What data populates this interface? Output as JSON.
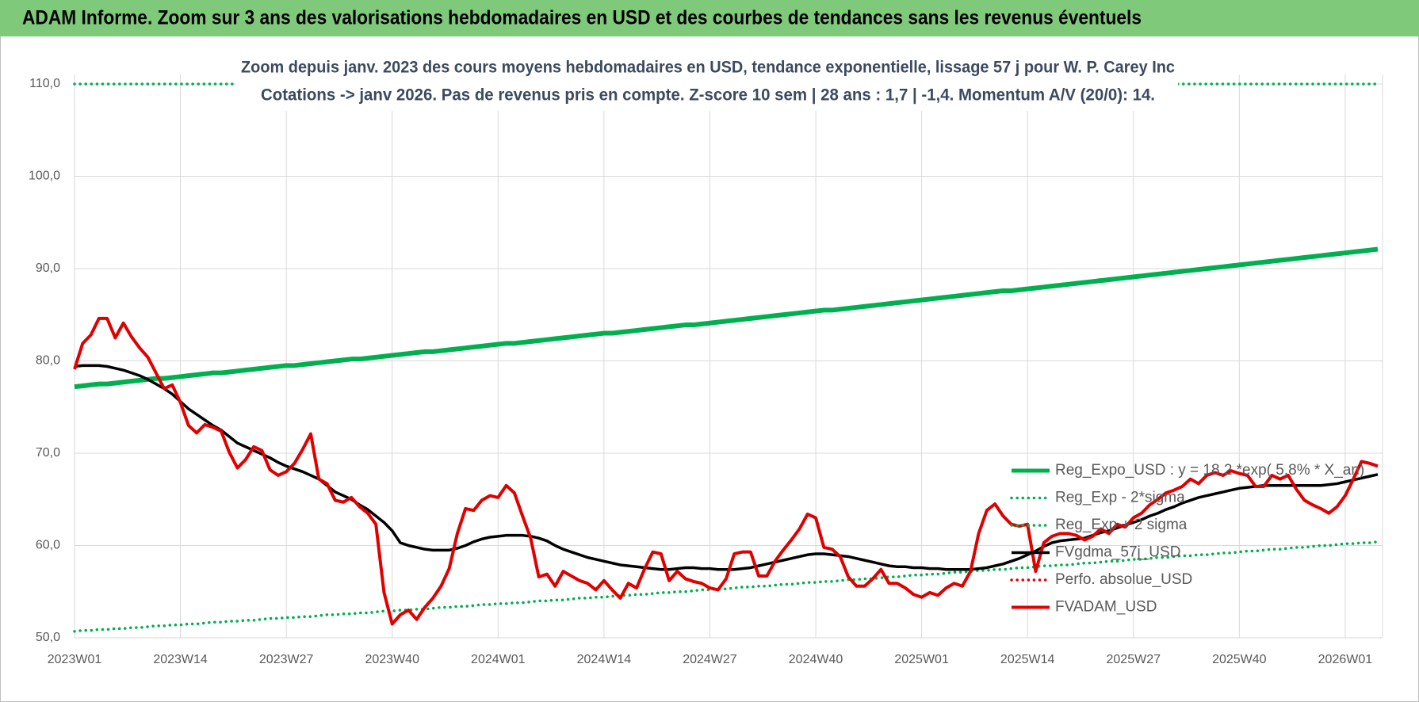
{
  "chart_data": {
    "type": "line",
    "title": "ADAM Informe. Zoom sur 3 ans des valorisations hebdomadaires en USD et des courbes de tendances sans les revenus éventuels",
    "subtitle": [
      "Zoom depuis janv. 2023 des cours moyens hebdomadaires en USD, tendance exponentielle, lissage 57 j pour W. P. Carey Inc",
      "Cotations -> janv 2026. Pas de revenus pris en compte. Z-score 10 sem | 28 ans : 1,7 | -1,4. Momentum A/V (20/0): 14."
    ],
    "categories": [
      "2023W01",
      null,
      null,
      null,
      null,
      null,
      null,
      null,
      null,
      null,
      null,
      null,
      null,
      "2023W14",
      null,
      null,
      null,
      null,
      null,
      null,
      null,
      null,
      null,
      null,
      null,
      null,
      "2023W27",
      null,
      null,
      null,
      null,
      null,
      null,
      null,
      null,
      null,
      null,
      null,
      null,
      "2023W40",
      null,
      null,
      null,
      null,
      null,
      null,
      null,
      null,
      null,
      null,
      null,
      null,
      "2024W01",
      null,
      null,
      null,
      null,
      null,
      null,
      null,
      null,
      null,
      null,
      null,
      null,
      "2024W14",
      null,
      null,
      null,
      null,
      null,
      null,
      null,
      null,
      null,
      null,
      null,
      null,
      "2024W27",
      null,
      null,
      null,
      null,
      null,
      null,
      null,
      null,
      null,
      null,
      null,
      null,
      "2024W40",
      null,
      null,
      null,
      null,
      null,
      null,
      null,
      null,
      null,
      null,
      null,
      null,
      "2025W01",
      null,
      null,
      null,
      null,
      null,
      null,
      null,
      null,
      null,
      null,
      null,
      null,
      "2025W14",
      null,
      null,
      null,
      null,
      null,
      null,
      null,
      null,
      null,
      null,
      null,
      null,
      "2025W27",
      null,
      null,
      null,
      null,
      null,
      null,
      null,
      null,
      null,
      null,
      null,
      null,
      "2025W40",
      null,
      null,
      null,
      null,
      null,
      null,
      null,
      null,
      null,
      null,
      null,
      null,
      "2026W01",
      null,
      null,
      null,
      null
    ],
    "ylim": [
      50,
      110
    ],
    "yticks": [
      {
        "value": 50,
        "label": "50,0"
      },
      {
        "value": 60,
        "label": "60,0"
      },
      {
        "value": 70,
        "label": "70,0"
      },
      {
        "value": 80,
        "label": "80,0"
      },
      {
        "value": 90,
        "label": "90,0"
      },
      {
        "value": 100,
        "label": "100,0"
      },
      {
        "value": 110,
        "label": "110,0"
      }
    ],
    "grid": true,
    "legend": "right",
    "series": [
      {
        "name": "Reg_Expo_USD : y = 18,2 *exp( 5,8% *  X_an)",
        "color": "#00b050",
        "line_style": "solid",
        "values": [
          77.2,
          77.3,
          77.4,
          77.5,
          77.5,
          77.6,
          77.7,
          77.8,
          77.9,
          78.0,
          78.1,
          78.1,
          78.2,
          78.3,
          78.4,
          78.5,
          78.6,
          78.7,
          78.7,
          78.8,
          78.9,
          79.0,
          79.1,
          79.2,
          79.3,
          79.4,
          79.5,
          79.5,
          79.6,
          79.7,
          79.8,
          79.9,
          80.0,
          80.1,
          80.2,
          80.2,
          80.3,
          80.4,
          80.5,
          80.6,
          80.7,
          80.8,
          80.9,
          81.0,
          81.0,
          81.1,
          81.2,
          81.3,
          81.4,
          81.5,
          81.6,
          81.7,
          81.8,
          81.9,
          81.9,
          82.0,
          82.1,
          82.2,
          82.3,
          82.4,
          82.5,
          82.6,
          82.7,
          82.8,
          82.9,
          83.0,
          83.0,
          83.1,
          83.2,
          83.3,
          83.4,
          83.5,
          83.6,
          83.7,
          83.8,
          83.9,
          83.9,
          84.0,
          84.1,
          84.2,
          84.3,
          84.4,
          84.5,
          84.6,
          84.7,
          84.8,
          84.9,
          85.0,
          85.1,
          85.2,
          85.3,
          85.4,
          85.5,
          85.5,
          85.6,
          85.7,
          85.8,
          85.9,
          86.0,
          86.1,
          86.2,
          86.3,
          86.4,
          86.5,
          86.6,
          86.7,
          86.8,
          86.9,
          87.0,
          87.1,
          87.2,
          87.3,
          87.4,
          87.5,
          87.6,
          87.6,
          87.7,
          87.8,
          87.9,
          88.0,
          88.1,
          88.2,
          88.3,
          88.4,
          88.5,
          88.6,
          88.7,
          88.8,
          88.9,
          89.0,
          89.1,
          89.2,
          89.3,
          89.4,
          89.5,
          89.6,
          89.7,
          89.8,
          89.9,
          90.0,
          90.1,
          90.2,
          90.3,
          90.4,
          90.5,
          90.6,
          90.7,
          90.8,
          90.9,
          91.0,
          91.1,
          91.2,
          91.3,
          91.4,
          91.5,
          91.6,
          91.7,
          91.8,
          91.9,
          92.0,
          92.1
        ]
      },
      {
        "name": "Reg_Exp - 2*sigma",
        "color": "#00b050",
        "line_style": "dotted",
        "values": [
          50.7,
          50.8,
          50.8,
          50.9,
          50.9,
          51.0,
          51.0,
          51.1,
          51.1,
          51.2,
          51.3,
          51.3,
          51.4,
          51.4,
          51.5,
          51.5,
          51.6,
          51.7,
          51.7,
          51.8,
          51.8,
          51.9,
          51.9,
          52.0,
          52.1,
          52.1,
          52.2,
          52.2,
          52.3,
          52.3,
          52.4,
          52.5,
          52.5,
          52.6,
          52.6,
          52.7,
          52.7,
          52.8,
          52.9,
          52.9,
          53.0,
          53.0,
          53.1,
          53.1,
          53.2,
          53.3,
          53.3,
          53.4,
          53.4,
          53.5,
          53.6,
          53.6,
          53.7,
          53.7,
          53.8,
          53.8,
          53.9,
          54.0,
          54.0,
          54.1,
          54.1,
          54.2,
          54.3,
          54.3,
          54.4,
          54.4,
          54.5,
          54.6,
          54.6,
          54.7,
          54.7,
          54.8,
          54.9,
          54.9,
          55.0,
          55.0,
          55.1,
          55.2,
          55.2,
          55.3,
          55.3,
          55.4,
          55.5,
          55.5,
          55.6,
          55.6,
          55.7,
          55.8,
          55.8,
          55.9,
          56.0,
          56.0,
          56.1,
          56.1,
          56.2,
          56.3,
          56.3,
          56.4,
          56.4,
          56.5,
          56.6,
          56.6,
          56.7,
          56.8,
          56.8,
          56.9,
          56.9,
          57.0,
          57.1,
          57.1,
          57.2,
          57.3,
          57.3,
          57.4,
          57.4,
          57.5,
          57.6,
          57.6,
          57.7,
          57.8,
          57.8,
          57.9,
          57.9,
          58.0,
          58.1,
          58.1,
          58.2,
          58.3,
          58.3,
          58.4,
          58.5,
          58.5,
          58.6,
          58.7,
          58.7,
          58.8,
          58.9,
          58.9,
          59.0,
          59.0,
          59.1,
          59.2,
          59.2,
          59.3,
          59.4,
          59.4,
          59.5,
          59.6,
          59.6,
          59.7,
          59.8,
          59.8,
          59.9,
          60.0,
          60.0,
          60.1,
          60.2,
          60.2,
          60.3,
          60.3,
          60.4
        ]
      },
      {
        "name": "Reg_Exp + 2 sigma",
        "color": "#00b050",
        "line_style": "dotted",
        "values": [
          110,
          110,
          110,
          110,
          110,
          110,
          110,
          110,
          110,
          110,
          110,
          110,
          110,
          110,
          110,
          110,
          110,
          110,
          110,
          110,
          110,
          110,
          110,
          110,
          110,
          110,
          110,
          110,
          110,
          110,
          110,
          110,
          110,
          110,
          110,
          110,
          110,
          110,
          110,
          110,
          110,
          110,
          110,
          110,
          110,
          110,
          110,
          110,
          110,
          110,
          110,
          110,
          110,
          110,
          110,
          110,
          110,
          110,
          110,
          110,
          110,
          110,
          110,
          110,
          110,
          110,
          110,
          110,
          110,
          110,
          110,
          110,
          110,
          110,
          110,
          110,
          110,
          110,
          110,
          110,
          110,
          110,
          110,
          110,
          110,
          110,
          110,
          110,
          110,
          110,
          110,
          110,
          110,
          110,
          110,
          110,
          110,
          110,
          110,
          110,
          110,
          110,
          110,
          110,
          110,
          110,
          110,
          110,
          110,
          110,
          110,
          110,
          110,
          110,
          110,
          110,
          110,
          110,
          110,
          110,
          110,
          110,
          110,
          110,
          110,
          110,
          110,
          110,
          110,
          110,
          110,
          110,
          110,
          110,
          110,
          110,
          110,
          110,
          110,
          110,
          110,
          110,
          110,
          110,
          110,
          110,
          110,
          110,
          110,
          110,
          110,
          110,
          110,
          110,
          110,
          110,
          110,
          110,
          110,
          110,
          110
        ]
      },
      {
        "name": "FVgdma_57j_USD",
        "color": "#000000",
        "line_style": "solid",
        "values": [
          79.4,
          79.5,
          79.5,
          79.5,
          79.4,
          79.2,
          79.0,
          78.7,
          78.4,
          78.0,
          77.5,
          77.0,
          76.4,
          75.6,
          74.8,
          74.2,
          73.6,
          73.0,
          72.5,
          71.8,
          71.1,
          70.7,
          70.3,
          69.9,
          69.5,
          69.0,
          68.6,
          68.3,
          68.0,
          67.6,
          67.2,
          66.5,
          65.8,
          65.4,
          65.0,
          64.4,
          63.9,
          63.2,
          62.5,
          61.6,
          60.3,
          60.0,
          59.8,
          59.6,
          59.5,
          59.5,
          59.5,
          59.7,
          60.0,
          60.4,
          60.7,
          60.9,
          61.0,
          61.1,
          61.1,
          61.1,
          61.0,
          60.8,
          60.5,
          60.0,
          59.6,
          59.3,
          59.0,
          58.7,
          58.5,
          58.3,
          58.1,
          57.9,
          57.8,
          57.7,
          57.6,
          57.5,
          57.4,
          57.4,
          57.5,
          57.6,
          57.6,
          57.5,
          57.5,
          57.4,
          57.4,
          57.4,
          57.5,
          57.6,
          57.8,
          58.0,
          58.2,
          58.4,
          58.6,
          58.8,
          59.0,
          59.1,
          59.1,
          59.0,
          58.9,
          58.8,
          58.6,
          58.4,
          58.2,
          58.0,
          57.8,
          57.7,
          57.7,
          57.6,
          57.6,
          57.5,
          57.5,
          57.4,
          57.4,
          57.4,
          57.4,
          57.5,
          57.6,
          57.8,
          58.0,
          58.3,
          58.6,
          59.0,
          59.4,
          59.9,
          60.3,
          60.5,
          60.6,
          60.7,
          60.8,
          61.1,
          61.4,
          61.6,
          61.9,
          62.2,
          62.5,
          62.8,
          63.2,
          63.5,
          63.9,
          64.2,
          64.6,
          64.9,
          65.2,
          65.4,
          65.6,
          65.8,
          66.0,
          66.2,
          66.3,
          66.4,
          66.5,
          66.5,
          66.5,
          66.5,
          66.5,
          66.5,
          66.5,
          66.5,
          66.6,
          66.7,
          66.9,
          67.1,
          67.3,
          67.5,
          67.7
        ]
      },
      {
        "name": "Perfo. absolue_USD",
        "color": "#e00000",
        "line_style": "dotted"
      },
      {
        "name": "FVADAM_USD",
        "color": "#e00000",
        "line_style": "solid",
        "values": [
          79.1,
          81.9,
          82.8,
          84.6,
          84.6,
          82.5,
          84.1,
          82.6,
          81.4,
          80.4,
          78.7,
          77.0,
          77.4,
          75.5,
          73.0,
          72.2,
          73.1,
          72.8,
          72.4,
          70.1,
          68.4,
          69.3,
          70.7,
          70.3,
          68.2,
          67.6,
          68.0,
          68.9,
          70.4,
          72.1,
          67.2,
          66.7,
          64.9,
          64.7,
          65.2,
          64.2,
          63.5,
          62.3,
          54.9,
          51.5,
          52.5,
          53.0,
          52.0,
          53.3,
          54.3,
          55.6,
          57.5,
          61.3,
          64.0,
          63.8,
          64.9,
          65.4,
          65.2,
          66.5,
          65.7,
          63.2,
          60.8,
          56.6,
          56.9,
          55.6,
          57.2,
          56.7,
          56.2,
          55.9,
          55.2,
          56.2,
          55.2,
          54.3,
          55.9,
          55.4,
          57.5,
          59.3,
          59.1,
          56.2,
          57.2,
          56.4,
          56.1,
          55.9,
          55.4,
          55.2,
          56.4,
          59.1,
          59.3,
          59.3,
          56.7,
          56.7,
          58.3,
          59.5,
          60.6,
          61.8,
          63.4,
          63.0,
          59.8,
          59.6,
          58.8,
          56.6,
          55.6,
          55.6,
          56.4,
          57.4,
          55.9,
          55.9,
          55.4,
          54.7,
          54.4,
          54.9,
          54.6,
          55.4,
          55.9,
          55.6,
          57.2,
          61.3,
          63.8,
          64.5,
          63.2,
          62.3,
          62.1,
          62.3,
          57.2,
          60.3,
          61.0,
          61.3,
          61.3,
          61.1,
          60.6,
          61.0,
          61.8,
          61.3,
          62.3,
          62.0,
          63.0,
          63.5,
          64.4,
          65.0,
          65.7,
          66.0,
          66.4,
          67.2,
          66.7,
          67.6,
          67.9,
          67.6,
          68.1,
          67.8,
          67.6,
          66.4,
          66.4,
          67.6,
          67.2,
          67.6,
          66.1,
          64.9,
          64.4,
          64.0,
          63.5,
          64.2,
          65.4,
          67.2,
          69.1,
          68.9,
          68.6
        ]
      }
    ]
  }
}
